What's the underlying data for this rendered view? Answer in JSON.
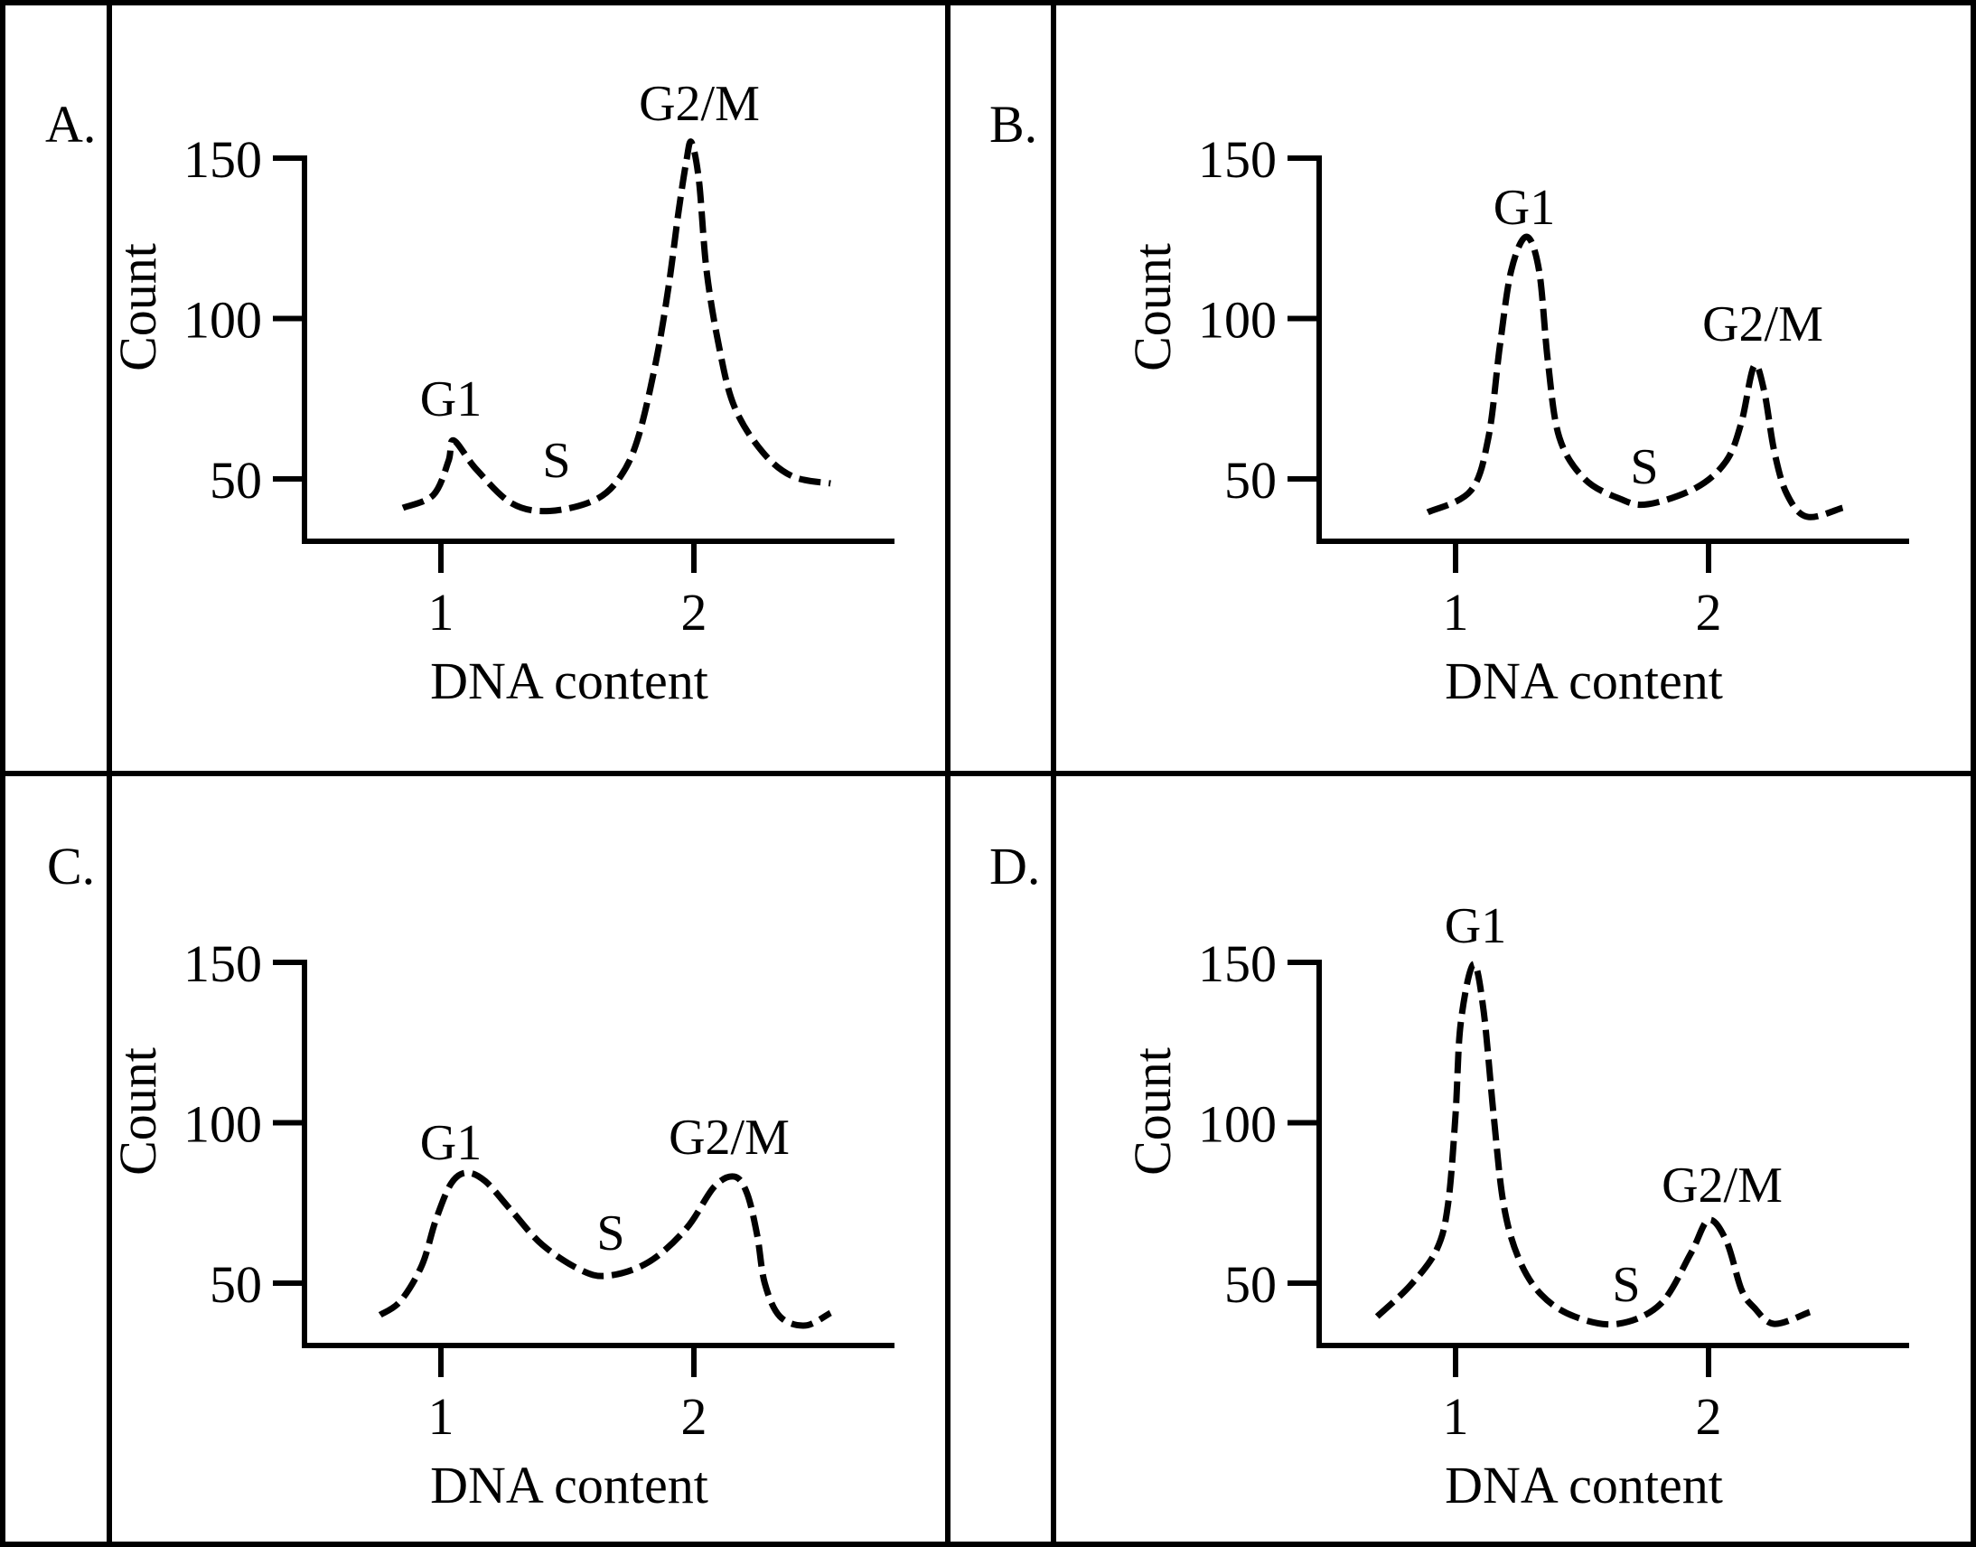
{
  "figure": {
    "line_color": "#000000",
    "background": "#ffffff"
  },
  "chart_data": [
    {
      "panel": "A.",
      "type": "line",
      "style": "dashed",
      "xlabel": "DNA content",
      "ylabel": "Count",
      "xticks": [
        "1",
        "2"
      ],
      "yticks": [
        "150",
        "100",
        "50"
      ],
      "xtick_values": [
        1,
        2
      ],
      "ytick_values": [
        150,
        100,
        50
      ],
      "xlim": [
        0.5,
        2.8
      ],
      "ylim": [
        30.6,
        150
      ],
      "grid": false,
      "annotations": [
        {
          "text": "G1",
          "x": 1.05,
          "y": 62
        },
        {
          "text": "S",
          "x": 1.43,
          "y": 40
        },
        {
          "text": "G2/M",
          "x": 1.99,
          "y": 155
        }
      ],
      "series": [
        {
          "name": "A",
          "x": [
            0.85,
            0.97,
            1.03,
            1.05,
            1.14,
            1.28,
            1.43,
            1.61,
            1.71,
            1.78,
            1.85,
            1.9,
            1.94,
            1.97,
            1.99,
            2.02,
            2.05,
            2.1,
            2.16,
            2.27,
            2.39,
            2.54
          ],
          "y": [
            41,
            45,
            55.6,
            62,
            53,
            42.4,
            40,
            43.5,
            50.8,
            63,
            86.6,
            110,
            133.7,
            149,
            155,
            143,
            115,
            91,
            72.5,
            58.5,
            50.8,
            48.6
          ]
        }
      ]
    },
    {
      "panel": "B.",
      "type": "line",
      "style": "dashed",
      "xlabel": "DNA content",
      "ylabel": "Count",
      "xticks": [
        "1",
        "2"
      ],
      "yticks": [
        "150",
        "100",
        "50"
      ],
      "xtick_values": [
        1,
        2
      ],
      "ytick_values": [
        150,
        100,
        50
      ],
      "xlim": [
        0.5,
        2.8
      ],
      "ylim": [
        30.6,
        150
      ],
      "grid": false,
      "annotations": [
        {
          "text": "G1",
          "x": 1.28,
          "y": 125.5
        },
        {
          "text": "S",
          "x": 1.76,
          "y": 42
        },
        {
          "text": "G2/M",
          "x": 2.18,
          "y": 85
        }
      ],
      "series": [
        {
          "name": "B",
          "x": [
            0.89,
            1.06,
            1.13,
            1.175,
            1.22,
            1.28,
            1.33,
            1.365,
            1.41,
            1.51,
            1.65,
            1.76,
            1.95,
            2.07,
            2.13,
            2.18,
            2.22,
            2.26,
            2.31,
            2.39,
            2.53
          ],
          "y": [
            39.6,
            46.3,
            63,
            91.4,
            115,
            125.5,
            115,
            86.6,
            63,
            50,
            43.8,
            42.1,
            47.2,
            55.6,
            67.7,
            85.2,
            77.3,
            58.5,
            45.2,
            38.2,
            41
          ]
        }
      ]
    },
    {
      "panel": "C.",
      "type": "line",
      "style": "dashed",
      "xlabel": "DNA content",
      "ylabel": "Count",
      "xticks": [
        "1",
        "2"
      ],
      "yticks": [
        "150",
        "100",
        "50"
      ],
      "xtick_values": [
        1,
        2
      ],
      "ytick_values": [
        150,
        100,
        50
      ],
      "xlim": [
        0.5,
        2.8
      ],
      "ylim": [
        30.6,
        150
      ],
      "grid": false,
      "annotations": [
        {
          "text": "G1",
          "x": 1.1,
          "y": 84.4
        },
        {
          "text": "S",
          "x": 1.66,
          "y": 52.3
        },
        {
          "text": "G2/M",
          "x": 2.16,
          "y": 83.2
        }
      ],
      "series": [
        {
          "name": "C",
          "x": [
            0.76,
            0.84,
            0.925,
            0.98,
            1.04,
            1.1,
            1.175,
            1.28,
            1.4,
            1.55,
            1.66,
            1.82,
            1.97,
            2.08,
            2.16,
            2.21,
            2.25,
            2.28,
            2.34,
            2.44,
            2.54
          ],
          "y": [
            40.1,
            44.4,
            55.6,
            69.7,
            81,
            84.4,
            81.8,
            72.5,
            62,
            54.2,
            52.3,
            56.5,
            67,
            80,
            83.2,
            78,
            65,
            50,
            39.6,
            36.8,
            40.7
          ]
        }
      ]
    },
    {
      "panel": "D.",
      "type": "line",
      "style": "dashed",
      "xlabel": "DNA content",
      "ylabel": "Count",
      "xticks": [
        "1",
        "2"
      ],
      "yticks": [
        "150",
        "100",
        "50"
      ],
      "xtick_values": [
        1,
        2
      ],
      "ytick_values": [
        150,
        100,
        50
      ],
      "xlim": [
        0.5,
        2.8
      ],
      "ylim": [
        30.6,
        150
      ],
      "grid": false,
      "annotations": [
        {
          "text": "G1",
          "x": 1.07,
          "y": 149.4
        },
        {
          "text": "S",
          "x": 1.64,
          "y": 37.3
        },
        {
          "text": "G2/M",
          "x": 2.0,
          "y": 69.7
        }
      ],
      "series": [
        {
          "name": "D",
          "x": [
            0.69,
            0.82,
            0.925,
            0.97,
            1.0,
            1.02,
            1.07,
            1.11,
            1.15,
            1.19,
            1.25,
            1.34,
            1.47,
            1.64,
            1.81,
            1.93,
            2.0,
            2.07,
            2.13,
            2.18,
            2.26,
            2.4
          ],
          "y": [
            39.6,
            49.2,
            60.4,
            74.5,
            102.7,
            130.8,
            149.4,
            135.4,
            102.7,
            74.5,
            57.6,
            46.3,
            39.6,
            37.3,
            43.5,
            59.3,
            69.7,
            63.2,
            48,
            42.4,
            37.3,
            41
          ]
        }
      ]
    }
  ]
}
